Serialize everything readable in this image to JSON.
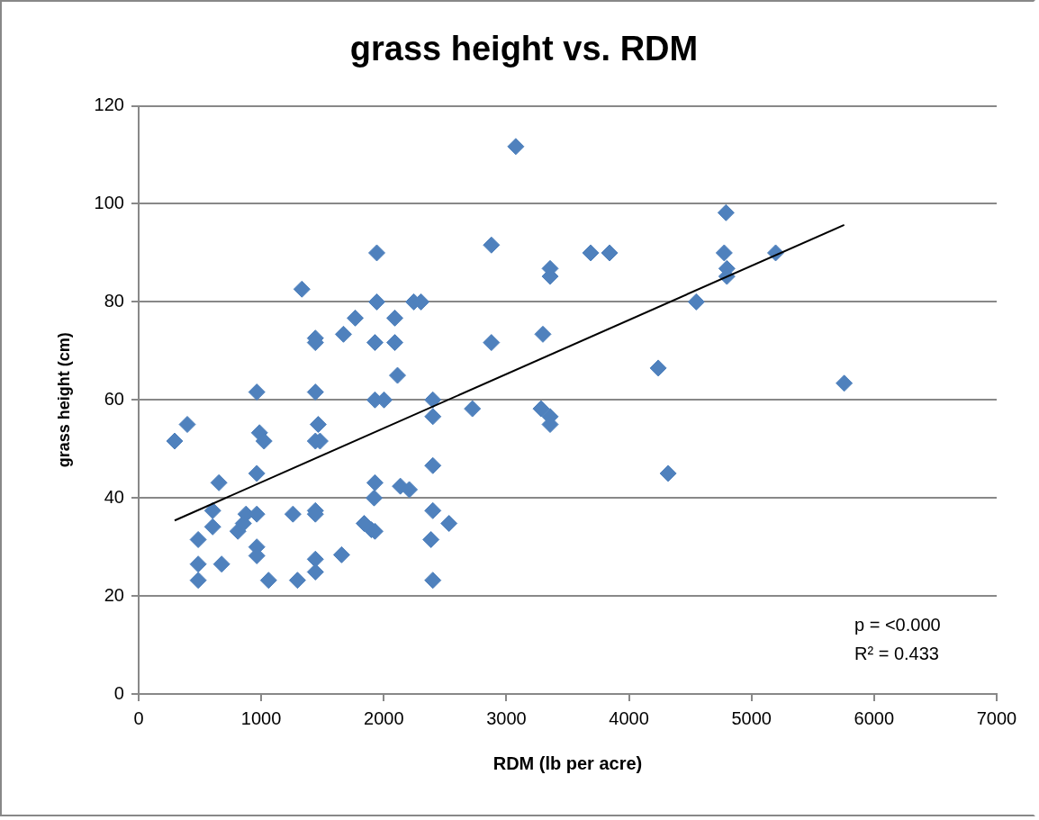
{
  "chart_data": {
    "type": "scatter",
    "title": "grass height vs. RDM",
    "xlabel": "RDM (lb per acre)",
    "ylabel": "grass height (cm)",
    "xlim": [
      0,
      7000
    ],
    "xticks": [
      0,
      1000,
      2000,
      3000,
      4000,
      5000,
      6000,
      7000
    ],
    "ylim": [
      0,
      120
    ],
    "yticks": [
      0,
      20,
      40,
      60,
      80,
      100,
      120
    ],
    "grid": "y",
    "legend": false,
    "marker": "diamond",
    "annotations": [
      "p = <0.000",
      "R² = 0.433"
    ],
    "series": [
      {
        "color": "#4f81bd",
        "x": [
          294,
          397,
          486,
          486,
          486,
          604,
          604,
          655,
          677,
          810,
          854,
          876,
          964,
          986,
          964,
          964,
          964,
          964,
          1023,
          1060,
          1259,
          1296,
          1332,
          1442,
          1442,
          1442,
          1442,
          1465,
          1480,
          1442,
          1442,
          1442,
          1442,
          1656,
          1671,
          1767,
          1840,
          1899,
          1928,
          1943,
          1943,
          1928,
          1928,
          1928,
          1921,
          2002,
          2090,
          2090,
          2112,
          2135,
          2208,
          2245,
          2304,
          2400,
          2400,
          2400,
          2400,
          2385,
          2400,
          2532,
          2723,
          2878,
          2878,
          3077,
          3283,
          3298,
          3357,
          3357,
          3357,
          3357,
          3688,
          3842,
          4239,
          4320,
          4549,
          4777,
          4792,
          4799,
          4799,
          5197,
          5756
        ],
        "values": [
          51.6,
          55,
          31.5,
          26.5,
          23.2,
          37.4,
          34.1,
          43.1,
          26.5,
          33.2,
          34.8,
          36.7,
          61.6,
          53.3,
          45,
          36.7,
          30,
          28.2,
          51.6,
          23.2,
          36.7,
          23.2,
          82.6,
          72.6,
          71.7,
          61.6,
          51.6,
          55,
          51.6,
          37.4,
          36.7,
          27.5,
          24.9,
          28.4,
          73.4,
          76.7,
          34.8,
          33.5,
          33.2,
          90,
          80,
          71.7,
          60,
          43.1,
          40,
          60,
          76.7,
          71.7,
          65,
          42.4,
          41.7,
          80,
          80,
          60,
          56.6,
          46.6,
          37.4,
          31.5,
          23.2,
          34.8,
          58.2,
          91.6,
          71.7,
          111.7,
          58.2,
          73.4,
          86.8,
          85.2,
          56.6,
          55,
          90,
          90,
          66.5,
          45,
          80,
          90,
          98.2,
          86.8,
          85.2,
          90,
          63.4
        ]
      },
      {
        "type": "line",
        "color": "#000000",
        "marker": "none",
        "x": [
          294,
          5756
        ],
        "values": [
          35.4,
          95.7
        ]
      }
    ]
  }
}
